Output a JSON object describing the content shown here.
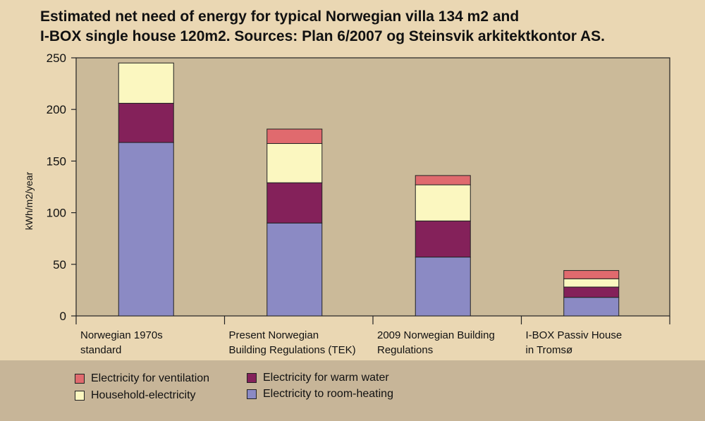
{
  "chart_data": {
    "type": "bar",
    "stacked": true,
    "title_lines": [
      "Estimated net need of energy for typical Norwegian villa 134 m2 and",
      "I-BOX single house 120m2. Sources: Plan 6/2007 og Steinsvik arkitektkontor AS."
    ],
    "ylabel": "kWh/m2/year",
    "ylim": [
      0,
      250
    ],
    "yticks": [
      0,
      50,
      100,
      150,
      200,
      250
    ],
    "categories": [
      [
        "Norwegian 1970s",
        "standard"
      ],
      [
        "Present Norwegian",
        "Building Regulations (TEK)"
      ],
      [
        "2009 Norwegian Building",
        "Regulations"
      ],
      [
        "I-BOX Passiv House",
        "in Tromsø"
      ]
    ],
    "series": [
      {
        "name": "Electricity to room-heating",
        "color": "#8b8ac4",
        "values": [
          168,
          90,
          57,
          18
        ]
      },
      {
        "name": "Electricity for warm water",
        "color": "#84215a",
        "values": [
          38,
          39,
          35,
          10
        ]
      },
      {
        "name": "Household-electricity",
        "color": "#fbf7c0",
        "values": [
          39,
          38,
          35,
          8
        ]
      },
      {
        "name": "Electricity for ventilation",
        "color": "#e06a6e",
        "values": [
          0,
          14,
          9,
          8
        ]
      }
    ],
    "legend_position": "bottom-left"
  }
}
